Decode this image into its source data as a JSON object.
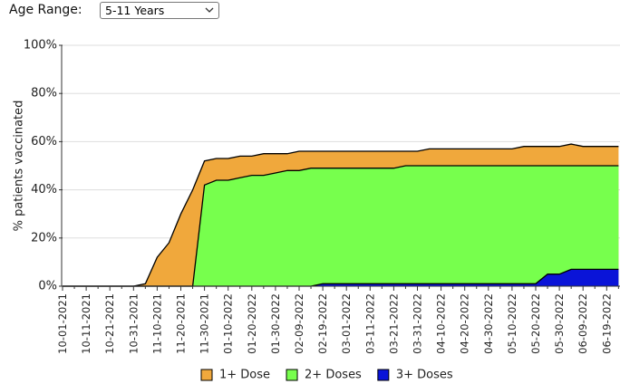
{
  "filter": {
    "label": "Age Range:",
    "selected": "5-11 Years"
  },
  "chart_data": {
    "type": "area",
    "ylabel": "% patients vaccinated",
    "categories": [
      "10-01-2021",
      null,
      "10-11-2021",
      null,
      "10-21-2021",
      null,
      "10-31-2021",
      null,
      "11-10-2021",
      null,
      "11-20-2021",
      null,
      "11-30-2021",
      null,
      "01-10-2022",
      null,
      "01-20-2022",
      null,
      "01-30-2022",
      null,
      "02-09-2022",
      null,
      "02-19-2022",
      null,
      "03-01-2022",
      null,
      "03-11-2022",
      null,
      "03-21-2022",
      null,
      "03-31-2022",
      null,
      "04-10-2022",
      null,
      "04-20-2022",
      null,
      "04-30-2022",
      null,
      "05-10-2022",
      null,
      "05-20-2022",
      null,
      "05-30-2022",
      null,
      "06-09-2022",
      null,
      "06-19-2022",
      null
    ],
    "series": [
      {
        "name": "1+ Dose",
        "color": "#f0a83c",
        "values": [
          0,
          0,
          0,
          0,
          0,
          0,
          0,
          1,
          12,
          18,
          30,
          40,
          52,
          53,
          53,
          54,
          54,
          55,
          55,
          55,
          56,
          56,
          56,
          56,
          56,
          56,
          56,
          56,
          56,
          56,
          56,
          57,
          57,
          57,
          57,
          57,
          57,
          57,
          57,
          58,
          58,
          58,
          58,
          59,
          58,
          58,
          58,
          58
        ]
      },
      {
        "name": "2+ Doses",
        "color": "#77ff4d",
        "values": [
          0,
          0,
          0,
          0,
          0,
          0,
          0,
          0,
          0,
          0,
          0,
          0,
          42,
          44,
          44,
          45,
          46,
          46,
          47,
          48,
          48,
          49,
          49,
          49,
          49,
          49,
          49,
          49,
          49,
          50,
          50,
          50,
          50,
          50,
          50,
          50,
          50,
          50,
          50,
          50,
          50,
          50,
          50,
          50,
          50,
          50,
          50,
          50
        ]
      },
      {
        "name": "3+ Doses",
        "color": "#0a14d8",
        "values": [
          0,
          0,
          0,
          0,
          0,
          0,
          0,
          0,
          0,
          0,
          0,
          0,
          0,
          0,
          0,
          0,
          0,
          0,
          0,
          0,
          0,
          0,
          1,
          1,
          1,
          1,
          1,
          1,
          1,
          1,
          1,
          1,
          1,
          1,
          1,
          1,
          1,
          1,
          1,
          1,
          1,
          5,
          5,
          7,
          7,
          7,
          7,
          7
        ]
      }
    ],
    "ylim": [
      0,
      100
    ],
    "yticks": [
      {
        "value": 0,
        "label": "0%"
      },
      {
        "value": 20,
        "label": "20%"
      },
      {
        "value": 40,
        "label": "40%"
      },
      {
        "value": 60,
        "label": "60%"
      },
      {
        "value": 80,
        "label": "80%"
      },
      {
        "value": 100,
        "label": "100%"
      }
    ],
    "grid": true,
    "legend": "bottom"
  }
}
